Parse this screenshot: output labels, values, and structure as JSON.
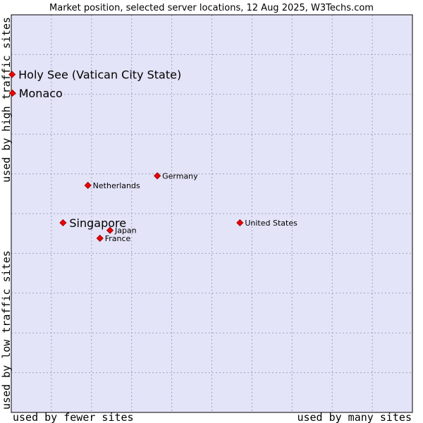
{
  "chart_data": {
    "type": "scatter",
    "title": "Market position, selected server locations, 12 Aug 2025, W3Techs.com",
    "xlabel_left": "used by fewer sites",
    "xlabel_right": "used by many sites",
    "ylabel_bottom": "used by low traffic sites",
    "ylabel_top": "used by high traffic sites",
    "xlim": [
      0,
      100
    ],
    "ylim": [
      0,
      100
    ],
    "grid": true,
    "points": [
      {
        "label": "Holy See (Vatican City State)",
        "x": 0.2,
        "y": 85.0,
        "size": "large"
      },
      {
        "label": "Monaco",
        "x": 0.3,
        "y": 80.3,
        "size": "large"
      },
      {
        "label": "Germany",
        "x": 36.4,
        "y": 59.5,
        "size": "small"
      },
      {
        "label": "Netherlands",
        "x": 19.1,
        "y": 57.1,
        "size": "small"
      },
      {
        "label": "Singapore",
        "x": 12.9,
        "y": 47.7,
        "size": "large"
      },
      {
        "label": "United States",
        "x": 57.0,
        "y": 47.7,
        "size": "small"
      },
      {
        "label": "Japan",
        "x": 24.6,
        "y": 45.8,
        "size": "small"
      },
      {
        "label": "France",
        "x": 22.1,
        "y": 43.8,
        "size": "small"
      }
    ]
  },
  "colors": {
    "plot_background": "#e4e4f8",
    "frame": "#000000",
    "grid": "#a0a0c0",
    "marker_fill": "#ee0000",
    "marker_stroke": "#880000"
  }
}
